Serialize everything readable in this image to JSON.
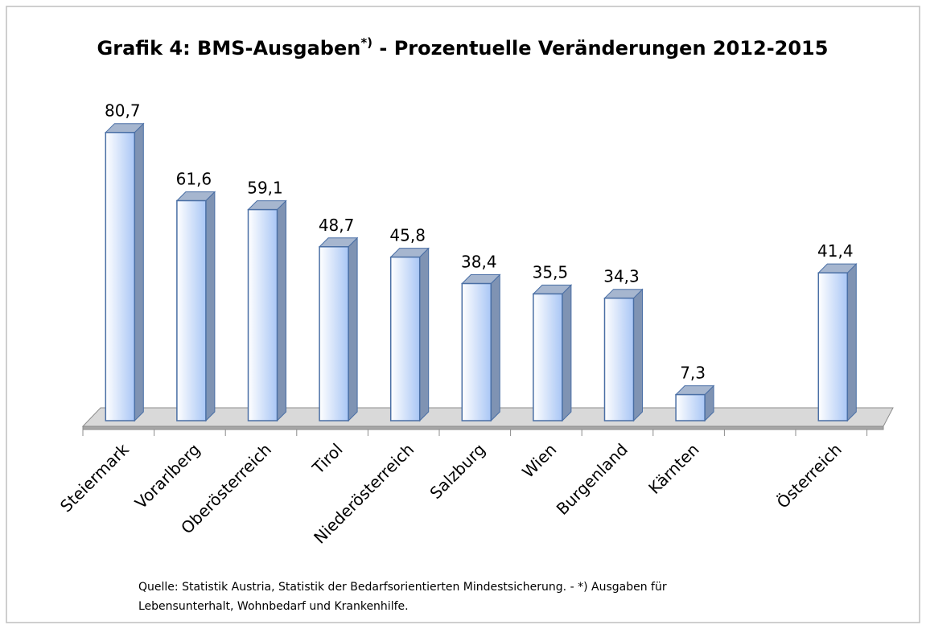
{
  "chart_data": {
    "type": "bar3d",
    "title": [
      "Grafik 4: BMS-Ausgaben",
      "*)",
      " - Prozentuelle Veränderungen 2012-2015"
    ],
    "categories": [
      "Steiermark",
      "Vorarlberg",
      "Oberösterreich",
      "Tirol",
      "Niederösterreich",
      "Salzburg",
      "Wien",
      "Burgenland",
      "Kärnten",
      null,
      "Österreich"
    ],
    "values": [
      80.7,
      61.6,
      59.1,
      48.7,
      45.8,
      38.4,
      35.5,
      34.3,
      7.3,
      null,
      41.4
    ],
    "value_labels": [
      "80,7",
      "61,6",
      "59,1",
      "48,7",
      "45,8",
      "38,4",
      "35,5",
      "34,3",
      "7,3",
      null,
      "41,4"
    ],
    "color": "#a9c6f5",
    "note": [
      "Quelle: Statistik Austria, Statistik der Bedarfsorientierten Mindestsicherung. - *) Ausgaben für",
      "Lebensunterhalt, Wohnbedarf und Krankenhilfe."
    ]
  }
}
